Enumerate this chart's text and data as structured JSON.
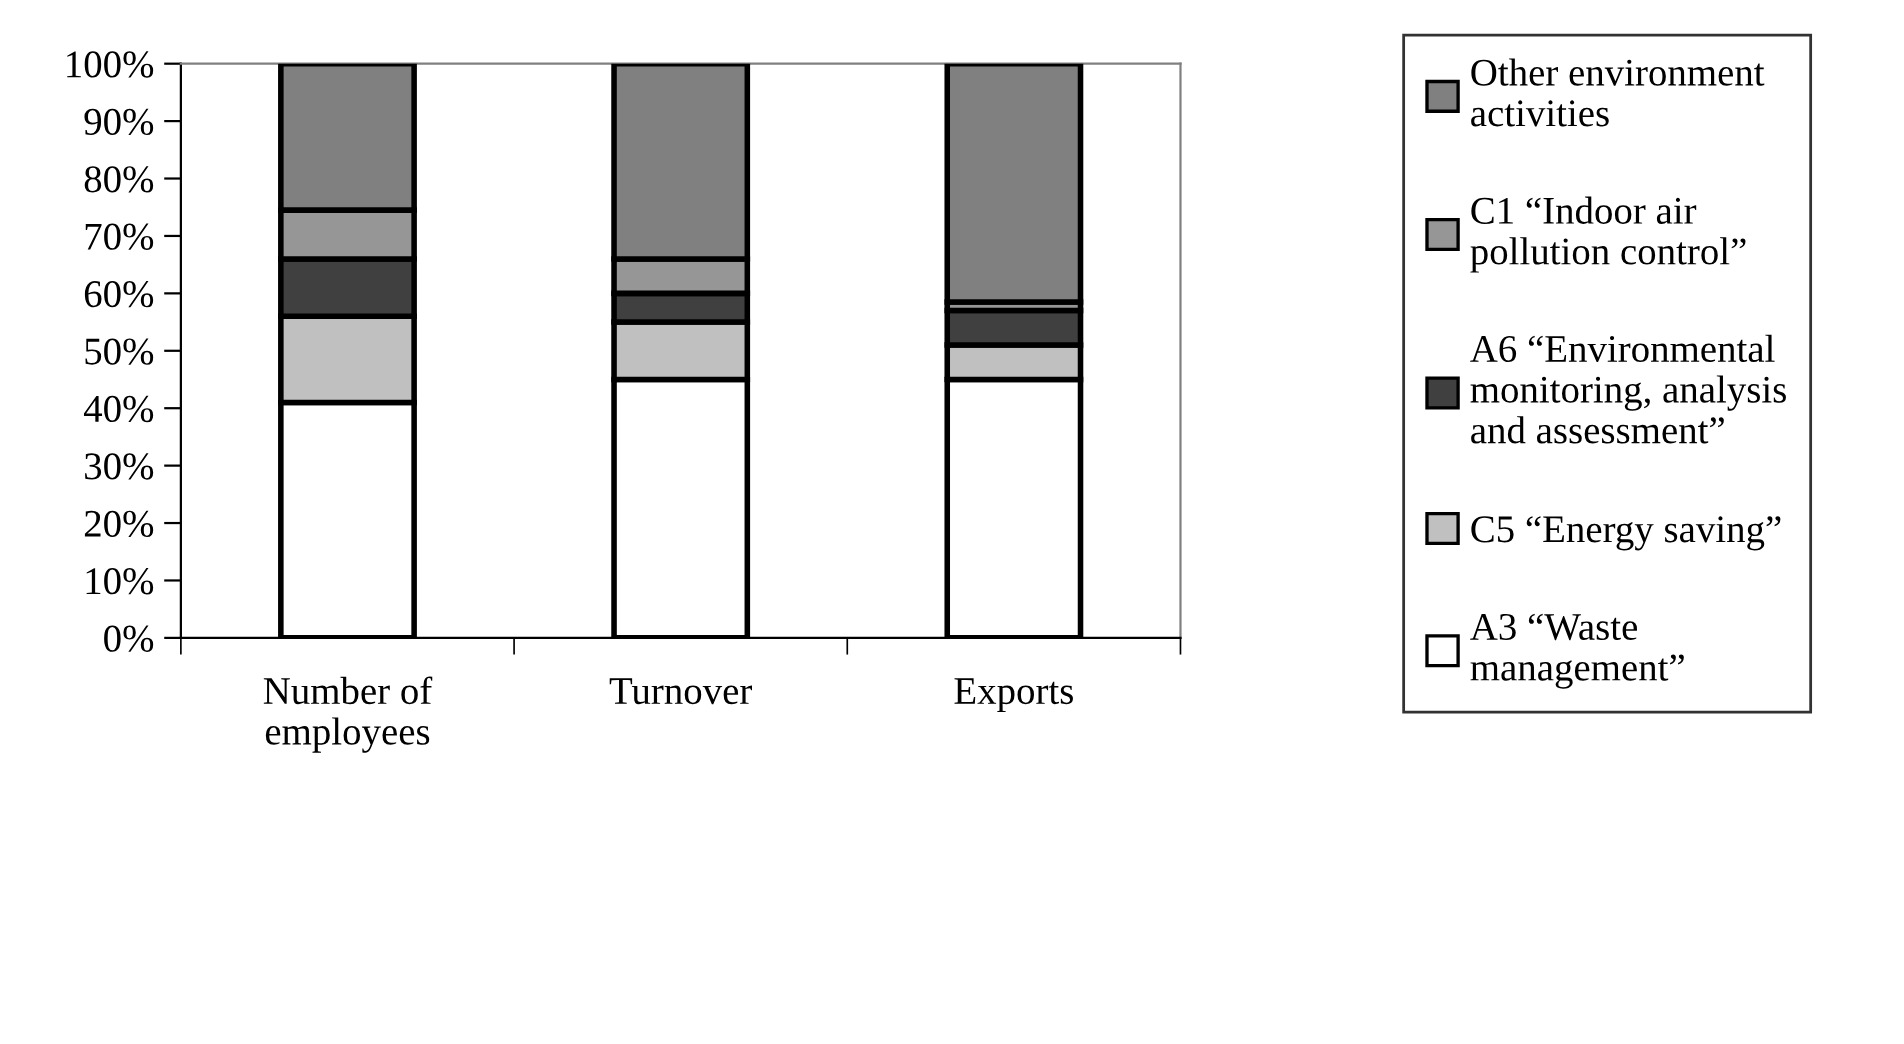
{
  "chart_data": {
    "type": "bar",
    "stacked": true,
    "categories": [
      "Number of\nemployees",
      "Turnover",
      "Exports"
    ],
    "series": [
      {
        "name": "A3 “Waste\nmanagement”",
        "color": "#ffffff",
        "values": [
          41,
          45,
          45
        ]
      },
      {
        "name": "C5 “Energy saving”",
        "color": "#c0c0c0",
        "values": [
          15,
          10,
          6
        ]
      },
      {
        "name": "A6 “Environmental\nmonitoring, analysis\nand assessment”",
        "color": "#404040",
        "values": [
          10,
          5,
          6
        ]
      },
      {
        "name": "C1 “Indoor air\npollution control”",
        "color": "#969696",
        "values": [
          8.5,
          6,
          1.5
        ]
      },
      {
        "name": "Other environment\nactivities",
        "color": "#808080",
        "values": [
          25.5,
          34,
          41.5
        ]
      }
    ],
    "ylim": [
      0,
      100
    ],
    "yticks": [
      {
        "value": 0,
        "label": "0%"
      },
      {
        "value": 10,
        "label": "10%"
      },
      {
        "value": 20,
        "label": "20%"
      },
      {
        "value": 30,
        "label": "30%"
      },
      {
        "value": 40,
        "label": "40%"
      },
      {
        "value": 50,
        "label": "50%"
      },
      {
        "value": 60,
        "label": "60%"
      },
      {
        "value": 70,
        "label": "70%"
      },
      {
        "value": 80,
        "label": "80%"
      },
      {
        "value": 90,
        "label": "90%"
      },
      {
        "value": 100,
        "label": "100%"
      }
    ],
    "grid": false,
    "legend": "right"
  }
}
